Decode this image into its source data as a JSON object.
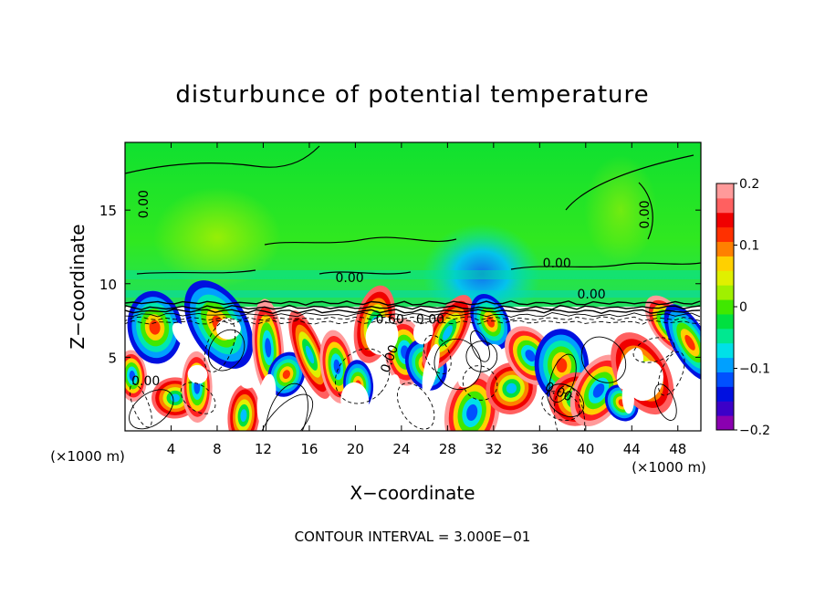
{
  "chart_data": {
    "type": "heatmap",
    "title": "disturbunce of potential temperature",
    "xlabel": "X−coordinate",
    "ylabel": "Z−coordinate",
    "x_unit_left": "(×1000 m)",
    "x_unit_right": "(×1000 m)",
    "footer": "CONTOUR INTERVAL = 3.000E−01",
    "xlim": [
      0,
      50
    ],
    "ylim": [
      0,
      19.6
    ],
    "xticks": [
      4,
      8,
      12,
      16,
      20,
      24,
      28,
      32,
      36,
      40,
      44,
      48
    ],
    "yticks": [
      5,
      10,
      15
    ],
    "colorbar": {
      "range": [
        -0.2,
        0.2
      ],
      "ticks": [
        {
          "value": 0.2,
          "label": "0.2"
        },
        {
          "value": 0.1,
          "label": "0.1"
        },
        {
          "value": 0,
          "label": "0"
        },
        {
          "value": -0.1,
          "label": "−0.1"
        },
        {
          "value": -0.2,
          "label": "−0.2"
        }
      ],
      "colors": [
        "#8a00b0",
        "#3c00c8",
        "#0010e0",
        "#0050ff",
        "#00a0ff",
        "#00e0e8",
        "#00e890",
        "#00e040",
        "#40e800",
        "#a0f000",
        "#e0f000",
        "#ffd000",
        "#ff8000",
        "#ff3000",
        "#f00000",
        "#ff6060",
        "#ff9a9a"
      ]
    },
    "contour_labels": [
      {
        "text": "0.00",
        "x": 2,
        "z": 15.4,
        "rotate": -90
      },
      {
        "text": "0.00",
        "x": 19.5,
        "z": 10.1,
        "rotate": 0
      },
      {
        "text": "0.00",
        "x": 37.5,
        "z": 11.1,
        "rotate": 0
      },
      {
        "text": "0.00",
        "x": 40.5,
        "z": 9.0,
        "rotate": 0
      },
      {
        "text": "0.00",
        "x": 45.5,
        "z": 14.7,
        "rotate": -90
      },
      {
        "text": "0.60",
        "x": 23,
        "z": 7.3,
        "rotate": 0
      },
      {
        "text": "0.00",
        "x": 26.5,
        "z": 7.3,
        "rotate": 0
      },
      {
        "text": "0.00",
        "x": 23.3,
        "z": 4.8,
        "rotate": -70
      },
      {
        "text": "0.00",
        "x": 1.8,
        "z": 3.1,
        "rotate": 0
      },
      {
        "text": "0.00",
        "x": 37.5,
        "z": 2.4,
        "rotate": 25
      }
    ]
  }
}
